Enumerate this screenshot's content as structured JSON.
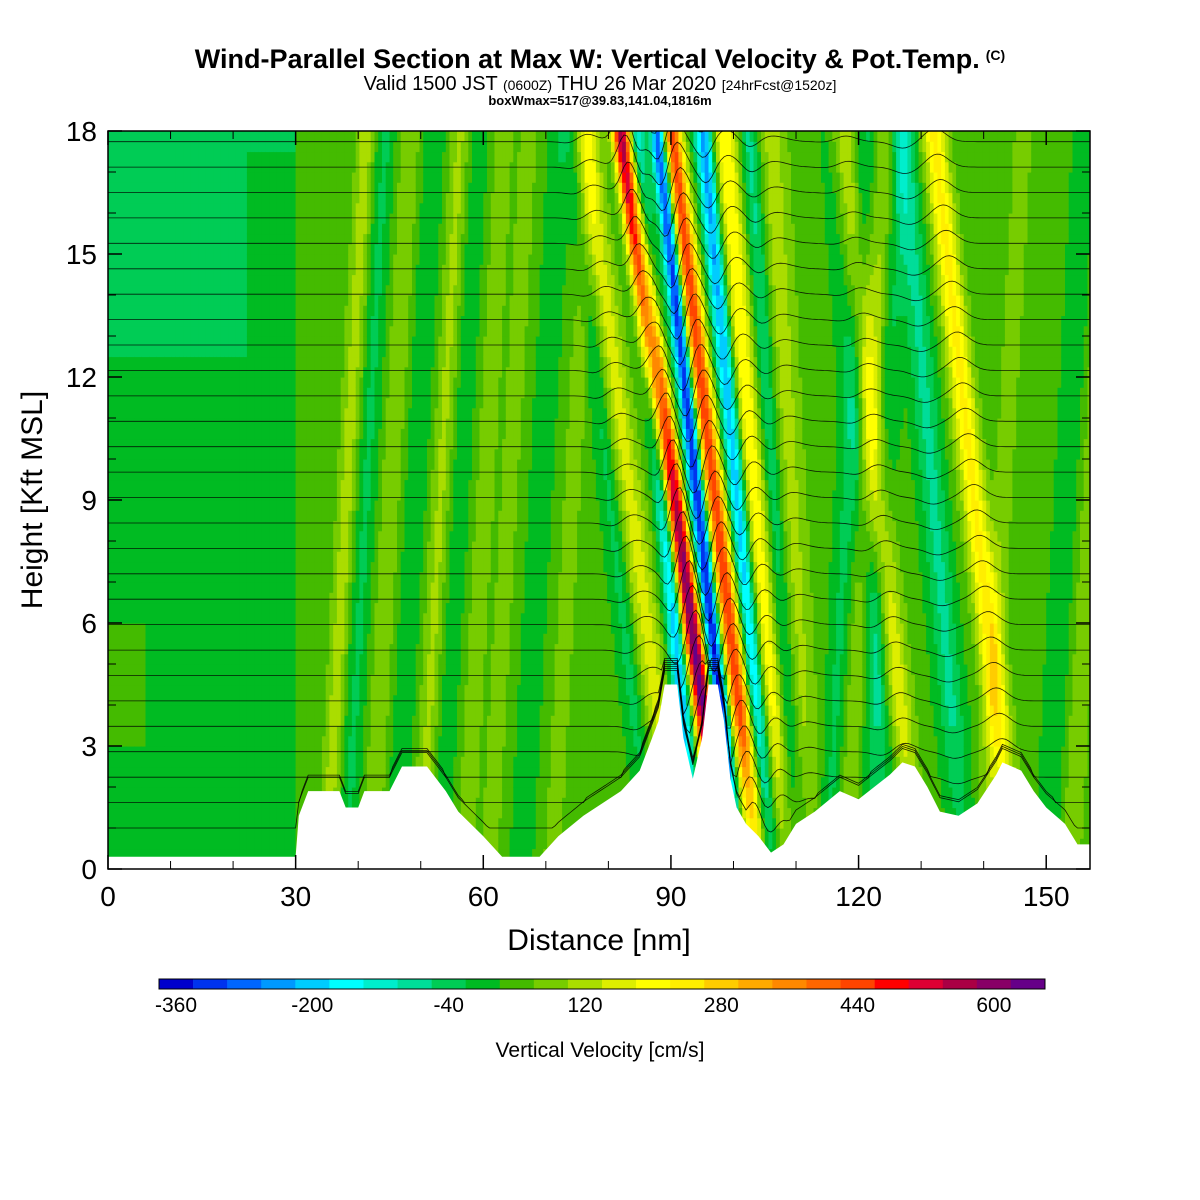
{
  "header": {
    "title": "Wind-Parallel Section at Max W: Vertical Velocity & Pot.Temp.",
    "title_tag": "(C)",
    "valid_prefix": "Valid 1500 JST",
    "valid_utc": "(0600Z)",
    "valid_date": "THU 26 Mar 2020",
    "forecast": "[24hrFcst@1520z]",
    "boxwmax": "boxWmax=517@39.83,141.04,1816m"
  },
  "chart_data": {
    "type": "heatmap",
    "xlabel": "Distance [nm]",
    "ylabel": "Height [Kft MSL]",
    "xlim": [
      0,
      157
    ],
    "ylim": [
      0,
      18
    ],
    "x_ticks": [
      0,
      30,
      60,
      90,
      120,
      150
    ],
    "y_ticks": [
      0,
      3,
      6,
      9,
      12,
      15,
      18
    ],
    "colorbar": {
      "title": "Vertical Velocity [cm/s]",
      "min": -380,
      "step": 40,
      "labels": [
        -360,
        -200,
        -40,
        120,
        280,
        440,
        600
      ],
      "colors": [
        "#0000cc",
        "#0033ee",
        "#0066ff",
        "#0099ff",
        "#00ccff",
        "#00ffff",
        "#00eecc",
        "#00dd99",
        "#00cc55",
        "#00bb22",
        "#44bb00",
        "#77cc00",
        "#aadd00",
        "#ddee00",
        "#ffff00",
        "#ffee00",
        "#ffcc00",
        "#ffaa00",
        "#ff8800",
        "#ff6600",
        "#ff4400",
        "#ff0000",
        "#dd0033",
        "#aa0044",
        "#880066",
        "#660088"
      ]
    },
    "terrain_kft": [
      [
        0,
        0.3
      ],
      [
        30,
        0.3
      ],
      [
        30.5,
        1.3
      ],
      [
        32,
        1.9
      ],
      [
        37,
        1.9
      ],
      [
        38,
        1.5
      ],
      [
        40,
        1.5
      ],
      [
        41,
        1.9
      ],
      [
        45,
        1.9
      ],
      [
        47,
        2.5
      ],
      [
        51,
        2.5
      ],
      [
        54,
        1.9
      ],
      [
        56,
        1.4
      ],
      [
        60,
        0.8
      ],
      [
        63,
        0.3
      ],
      [
        69,
        0.3
      ],
      [
        72,
        0.8
      ],
      [
        76,
        1.3
      ],
      [
        82,
        1.9
      ],
      [
        85,
        2.4
      ],
      [
        88,
        3.6
      ],
      [
        89,
        4.5
      ],
      [
        91,
        4.5
      ],
      [
        92,
        3.2
      ],
      [
        93.5,
        2.2
      ],
      [
        95,
        3.2
      ],
      [
        96,
        4.5
      ],
      [
        97.5,
        4.5
      ],
      [
        98.5,
        3.6
      ],
      [
        99.5,
        2.2
      ],
      [
        100.5,
        1.5
      ],
      [
        102,
        1.1
      ],
      [
        104,
        0.8
      ],
      [
        106,
        0.4
      ],
      [
        108,
        0.6
      ],
      [
        110,
        1.1
      ],
      [
        113,
        1.4
      ],
      [
        117,
        1.9
      ],
      [
        120,
        1.7
      ],
      [
        125,
        2.3
      ],
      [
        127,
        2.6
      ],
      [
        129,
        2.5
      ],
      [
        131,
        2.0
      ],
      [
        133,
        1.4
      ],
      [
        136,
        1.3
      ],
      [
        139,
        1.6
      ],
      [
        142,
        2.3
      ],
      [
        143,
        2.6
      ],
      [
        146,
        2.4
      ],
      [
        148,
        1.9
      ],
      [
        150,
        1.5
      ],
      [
        153,
        1.1
      ],
      [
        155,
        0.6
      ],
      [
        157,
        0.6
      ]
    ],
    "updrafts": [
      {
        "x0": 98.5,
        "x1": 82,
        "w": 1.4,
        "amp": 560
      },
      {
        "x0": 99.5,
        "x1": 83.5,
        "w": 0.9,
        "amp": 160
      },
      {
        "x0": 104,
        "x1": 90,
        "w": 1.7,
        "amp": 430
      },
      {
        "x0": 108,
        "x1": 98.5,
        "w": 2.2,
        "amp": 190
      },
      {
        "x0": 112,
        "x1": 106,
        "w": 2.6,
        "amp": 90
      },
      {
        "x0": 129,
        "x1": 117,
        "w": 2.2,
        "amp": 150
      },
      {
        "x0": 145,
        "x1": 132,
        "w": 2.0,
        "amp": 200
      },
      {
        "x0": 91,
        "x1": 76,
        "w": 2.2,
        "amp": 130
      }
    ],
    "downdrafts": [
      {
        "x0": 94,
        "x1": 84,
        "w": 1.4,
        "amp": -260
      },
      {
        "x0": 100.8,
        "x1": 88,
        "w": 1.3,
        "amp": -400
      },
      {
        "x0": 106.3,
        "x1": 95.2,
        "w": 1.5,
        "amp": -280
      },
      {
        "x0": 110.5,
        "x1": 102.5,
        "w": 1.6,
        "amp": -120
      },
      {
        "x0": 126,
        "x1": 116,
        "w": 2.0,
        "amp": -90
      },
      {
        "x0": 137,
        "x1": 127,
        "w": 2.0,
        "amp": -100
      },
      {
        "x0": 87,
        "x1": 74,
        "w": 1.6,
        "amp": -70
      }
    ],
    "streaks": [
      {
        "x": 35,
        "amp": 90
      },
      {
        "x": 38,
        "amp": -60
      },
      {
        "x": 42,
        "amp": 70
      },
      {
        "x": 46,
        "amp": -50
      },
      {
        "x": 50,
        "amp": 80
      },
      {
        "x": 53,
        "amp": -40
      },
      {
        "x": 57,
        "amp": 60
      },
      {
        "x": 61,
        "amp": 55
      },
      {
        "x": 66,
        "amp": -45
      },
      {
        "x": 71,
        "amp": 55
      },
      {
        "x": 115,
        "amp": -60
      },
      {
        "x": 118,
        "amp": 70
      },
      {
        "x": 121,
        "amp": -50
      },
      {
        "x": 140,
        "amp": 60
      },
      {
        "x": 150,
        "amp": -50
      },
      {
        "x": 154,
        "amp": 70
      }
    ],
    "isentropes": {
      "count": 34,
      "bottom_kft": 1.0,
      "spacing_kft": 0.62
    }
  }
}
